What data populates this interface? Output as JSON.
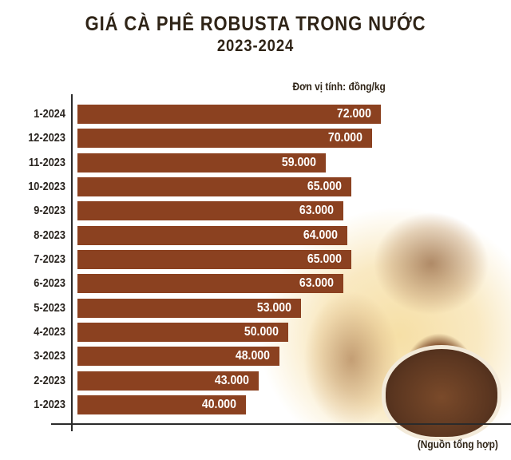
{
  "title": {
    "line1": "GIÁ CÀ PHÊ ROBUSTA TRONG NƯỚC",
    "line2": "2023-2024"
  },
  "unit_label": "Đơn vị tính: đồng/kg",
  "source_label": "(Nguồn tổng hợp)",
  "colors": {
    "bar": "#8b4120",
    "text": "#2f2417",
    "value_text": "#ffffff"
  },
  "chart_data": {
    "type": "bar",
    "orientation": "horizontal",
    "title": "GIÁ CÀ PHÊ ROBUSTA TRONG NƯỚC 2023-2024",
    "xlabel": "",
    "ylabel": "",
    "unit": "đồng/kg",
    "categories": [
      "1-2024",
      "12-2023",
      "11-2023",
      "10-2023",
      "9-2023",
      "8-2023",
      "7-2023",
      "6-2023",
      "5-2023",
      "4-2023",
      "3-2023",
      "2-2023",
      "1-2023"
    ],
    "values": [
      72000,
      70000,
      59000,
      65000,
      63000,
      64000,
      65000,
      63000,
      53000,
      50000,
      48000,
      43000,
      40000
    ],
    "value_labels": [
      "72.000",
      "70.000",
      "59.000",
      "65.000",
      "63.000",
      "64.000",
      "65.000",
      "63.000",
      "53.000",
      "50.000",
      "48.000",
      "43.000",
      "40.000"
    ],
    "grid": false,
    "legend": null,
    "source": "(Nguồn tổng hợp)"
  }
}
